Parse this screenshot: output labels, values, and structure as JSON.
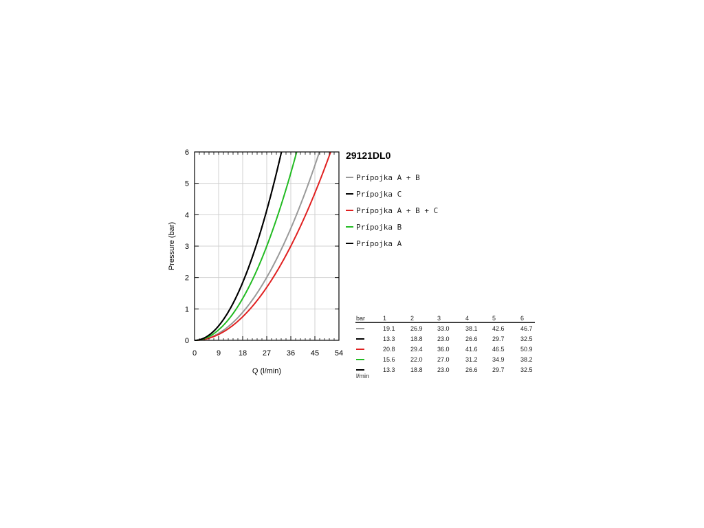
{
  "chart_data": {
    "type": "line",
    "title": "29121DL0",
    "xlabel": "Q (l/min)",
    "ylabel": "Pressure (bar)",
    "xlim": [
      0,
      54
    ],
    "ylim": [
      0,
      6
    ],
    "x_ticks": [
      "0",
      "9",
      "18",
      "27",
      "36",
      "45",
      "54"
    ],
    "y_ticks": [
      "0",
      "1",
      "2",
      "3",
      "4",
      "5",
      "6"
    ],
    "grid": true,
    "legend_position": "right",
    "series": [
      {
        "name": "Prípojka A + B",
        "color": "#999999",
        "x": [
          0,
          19.1,
          26.9,
          33.0,
          38.1,
          42.6,
          46.7
        ],
        "y": [
          0,
          1,
          2,
          3,
          4,
          5,
          6
        ]
      },
      {
        "name": "Prípojka C",
        "color": "#000000",
        "x": [
          0,
          13.3,
          18.8,
          23.0,
          26.6,
          29.7,
          32.5
        ],
        "y": [
          0,
          1,
          2,
          3,
          4,
          5,
          6
        ]
      },
      {
        "name": "Prípojka A + B + C",
        "color": "#e02020",
        "x": [
          0,
          20.8,
          29.4,
          36.0,
          41.6,
          46.5,
          50.9
        ],
        "y": [
          0,
          1,
          2,
          3,
          4,
          5,
          6
        ]
      },
      {
        "name": "Prípojka B",
        "color": "#22bb22",
        "x": [
          0,
          15.6,
          22.0,
          27.0,
          31.2,
          34.9,
          38.2
        ],
        "y": [
          0,
          1,
          2,
          3,
          4,
          5,
          6
        ]
      },
      {
        "name": "Prípojka A",
        "color": "#000000",
        "x": [
          0,
          13.3,
          18.8,
          23.0,
          26.6,
          29.7,
          32.5
        ],
        "y": [
          0,
          1,
          2,
          3,
          4,
          5,
          6
        ]
      }
    ],
    "table": {
      "header_label": "bar",
      "footer_label": "l/min",
      "columns": [
        "1",
        "2",
        "3",
        "4",
        "5",
        "6"
      ],
      "rows": [
        {
          "color": "#999999",
          "values": [
            "19.1",
            "26.9",
            "33.0",
            "38.1",
            "42.6",
            "46.7"
          ]
        },
        {
          "color": "#000000",
          "values": [
            "13.3",
            "18.8",
            "23.0",
            "26.6",
            "29.7",
            "32.5"
          ]
        },
        {
          "color": "#e02020",
          "values": [
            "20.8",
            "29.4",
            "36.0",
            "41.6",
            "46.5",
            "50.9"
          ]
        },
        {
          "color": "#22bb22",
          "values": [
            "15.6",
            "22.0",
            "27.0",
            "31.2",
            "34.9",
            "38.2"
          ]
        },
        {
          "color": "#000000",
          "values": [
            "13.3",
            "18.8",
            "23.0",
            "26.6",
            "29.7",
            "32.5"
          ]
        }
      ]
    }
  }
}
